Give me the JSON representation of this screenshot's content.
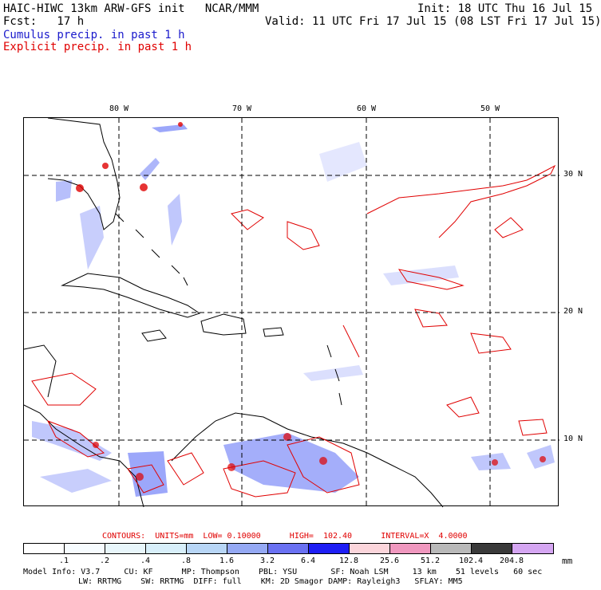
{
  "header": {
    "model_line": "HAIC-HIWC 13km ARW-GFS init   NCAR/MMM",
    "init_line": "Init: 18 UTC Thu 16 Jul 15",
    "fcst_line": "Fcst:   17 h",
    "valid_line": "Valid: 11 UTC Fri 17 Jul 15 (08 LST Fri 17 Jul 15)",
    "cumulus_label": "Cumulus precip. in past 1 h",
    "explicit_label": "Explicit precip. in past 1 h"
  },
  "map": {
    "lon_labels": [
      "80 W",
      "70 W",
      "60 W",
      "50 W"
    ],
    "lat_labels": [
      "30 N",
      "20 N",
      "10 N"
    ],
    "colors": {
      "coast": "#000000",
      "grid": "#000000",
      "explicit": "#e00000",
      "cumulus": "#4a5ef5"
    }
  },
  "contours": {
    "text": "CONTOURS:  UNITS=mm  LOW= 0.10000      HIGH=  102.40      INTERVAL=X  4.0000"
  },
  "colorbar": {
    "labels": [
      ".1",
      ".2",
      ".4",
      ".8",
      "1.6",
      "3.2",
      "6.4",
      "12.8",
      "25.6",
      "51.2",
      "102.4",
      "204.8"
    ],
    "colors": [
      "#ffffff",
      "#f7fcff",
      "#e8f6fb",
      "#d8effa",
      "#b8d6f6",
      "#95a9f4",
      "#6a71f2",
      "#1e1ef5",
      "#fbd5db",
      "#f098bf",
      "#b9b9b9",
      "#3a3a3a",
      "#d5a6f2"
    ],
    "units": "mm"
  },
  "model_info": {
    "line1": "Model Info: V3.7     CU: KF      MP: Thompson    PBL: YSU       SF: Noah LSM     13 km    51 levels   60 sec",
    "line2": "LW: RRTMG    SW: RRTMG  DIFF: full    KM: 2D Smagor DAMP: Rayleigh3   SFLAY: MM5"
  }
}
